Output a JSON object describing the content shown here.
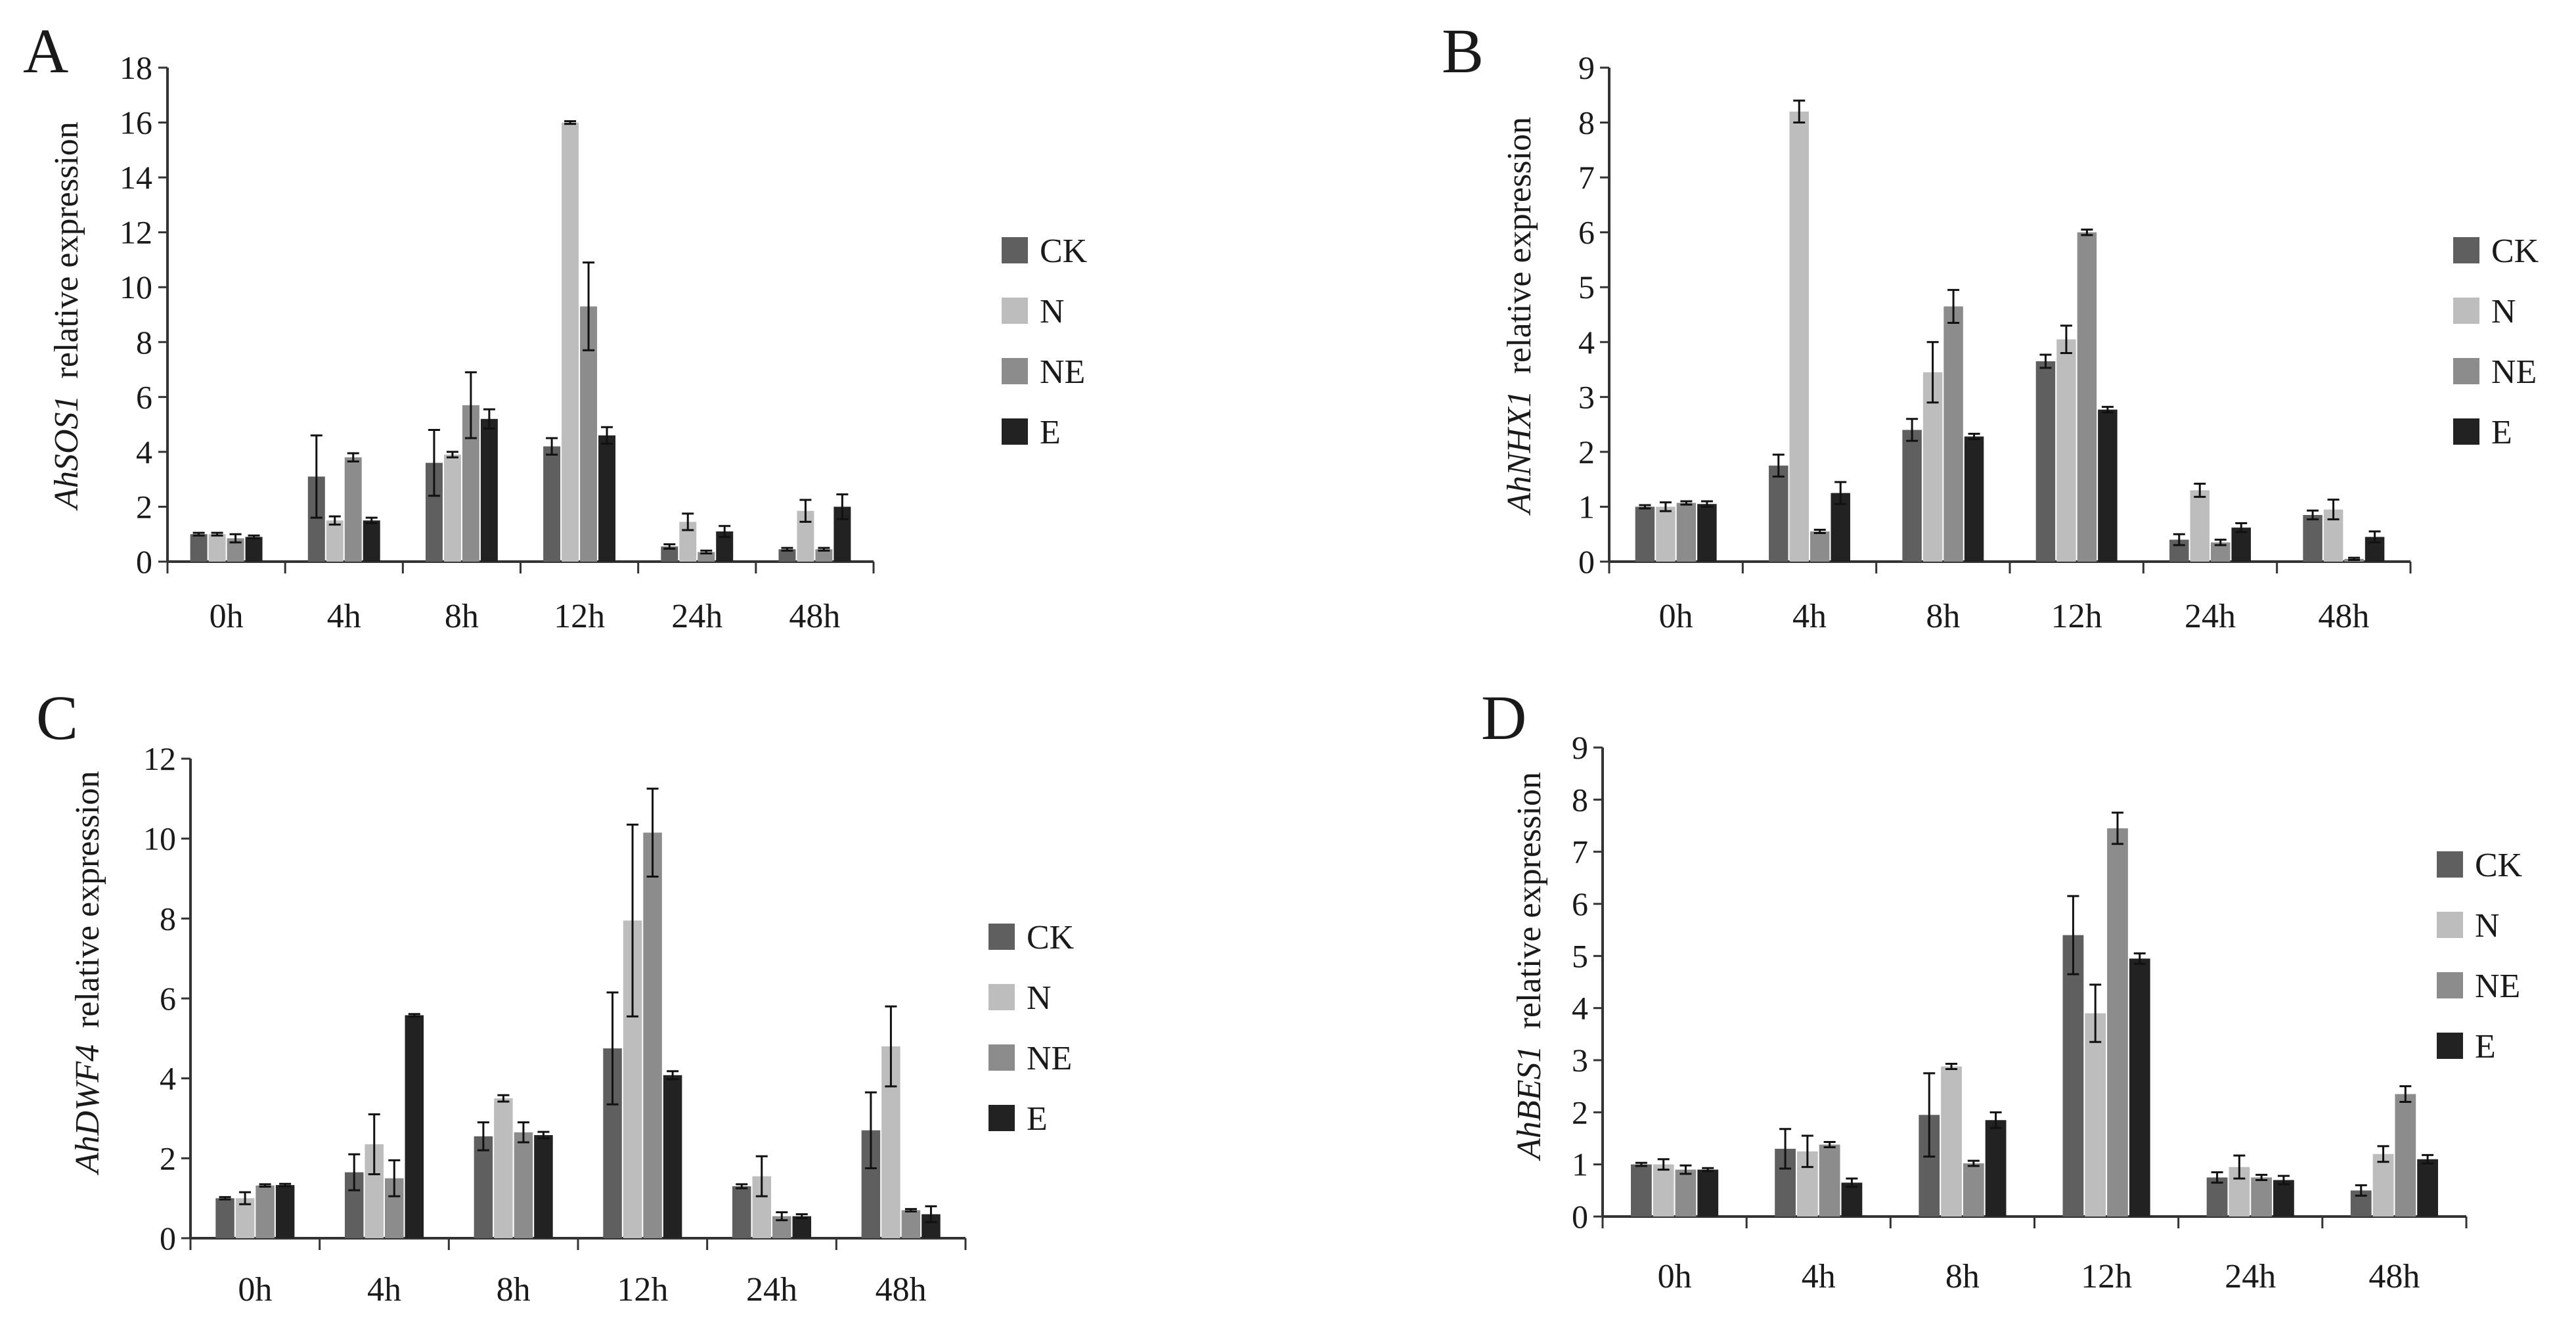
{
  "figure": {
    "legend_labels": [
      "CK",
      "N",
      "NE",
      "E"
    ],
    "colors": {
      "CK": "#5f5f5f",
      "N": "#bdbdbd",
      "NE": "#8c8c8c",
      "E": "#222222",
      "axis": "#333333",
      "text": "#1a1a1a"
    }
  },
  "chart_data": [
    {
      "panel": "A",
      "type": "bar",
      "gene": "AhSOS1",
      "ylabel_suffix": "relative expression",
      "xlabel": "",
      "ylim": [
        0,
        18
      ],
      "ytick_step": 2,
      "categories": [
        "0h",
        "4h",
        "8h",
        "12h",
        "24h",
        "48h"
      ],
      "series": [
        {
          "name": "CK",
          "values": [
            1.0,
            3.1,
            3.6,
            4.2,
            0.55,
            0.45
          ],
          "errors": [
            0.05,
            1.5,
            1.2,
            0.3,
            0.08,
            0.05
          ]
        },
        {
          "name": "N",
          "values": [
            1.0,
            1.5,
            3.9,
            16.0,
            1.45,
            1.85
          ],
          "errors": [
            0.05,
            0.15,
            0.1,
            0.05,
            0.3,
            0.4
          ]
        },
        {
          "name": "NE",
          "values": [
            0.85,
            3.8,
            5.7,
            9.3,
            0.35,
            0.45
          ],
          "errors": [
            0.15,
            0.15,
            1.2,
            1.6,
            0.05,
            0.05
          ]
        },
        {
          "name": "E",
          "values": [
            0.9,
            1.5,
            5.2,
            4.6,
            1.1,
            2.0
          ],
          "errors": [
            0.05,
            0.1,
            0.35,
            0.3,
            0.2,
            0.45
          ]
        }
      ]
    },
    {
      "panel": "B",
      "type": "bar",
      "gene": "AhNHX1",
      "ylabel_suffix": "relative expression",
      "xlabel": "",
      "ylim": [
        0,
        9
      ],
      "ytick_step": 1,
      "categories": [
        "0h",
        "4h",
        "8h",
        "12h",
        "24h",
        "48h"
      ],
      "series": [
        {
          "name": "CK",
          "values": [
            1.0,
            1.75,
            2.4,
            3.65,
            0.4,
            0.85
          ],
          "errors": [
            0.03,
            0.2,
            0.2,
            0.12,
            0.1,
            0.08
          ]
        },
        {
          "name": "N",
          "values": [
            1.0,
            8.2,
            3.45,
            4.05,
            1.3,
            0.95
          ],
          "errors": [
            0.08,
            0.2,
            0.55,
            0.25,
            0.12,
            0.18
          ]
        },
        {
          "name": "NE",
          "values": [
            1.07,
            0.55,
            4.65,
            6.0,
            0.35,
            0.05
          ],
          "errors": [
            0.03,
            0.03,
            0.3,
            0.05,
            0.05,
            0.02
          ]
        },
        {
          "name": "E",
          "values": [
            1.05,
            1.25,
            2.28,
            2.77,
            0.62,
            0.45
          ],
          "errors": [
            0.05,
            0.2,
            0.05,
            0.05,
            0.08,
            0.1
          ]
        }
      ]
    },
    {
      "panel": "C",
      "type": "bar",
      "gene": "AhDWF4",
      "ylabel_suffix": "relative expression",
      "xlabel": "",
      "ylim": [
        0,
        12
      ],
      "ytick_step": 2,
      "categories": [
        "0h",
        "4h",
        "8h",
        "12h",
        "24h",
        "48h"
      ],
      "series": [
        {
          "name": "CK",
          "values": [
            1.0,
            1.65,
            2.55,
            4.75,
            1.3,
            2.7
          ],
          "errors": [
            0.03,
            0.45,
            0.35,
            1.4,
            0.05,
            0.95
          ]
        },
        {
          "name": "N",
          "values": [
            1.0,
            2.35,
            3.5,
            7.95,
            1.55,
            4.8
          ],
          "errors": [
            0.15,
            0.75,
            0.08,
            2.4,
            0.5,
            1.0
          ]
        },
        {
          "name": "NE",
          "values": [
            1.32,
            1.5,
            2.65,
            10.15,
            0.55,
            0.7
          ],
          "errors": [
            0.03,
            0.45,
            0.25,
            1.1,
            0.1,
            0.03
          ]
        },
        {
          "name": "E",
          "values": [
            1.33,
            5.58,
            2.58,
            4.08,
            0.55,
            0.6
          ],
          "errors": [
            0.03,
            0.03,
            0.08,
            0.1,
            0.05,
            0.2
          ]
        }
      ]
    },
    {
      "panel": "D",
      "type": "bar",
      "gene": "AhBES1",
      "ylabel_suffix": "relative expression",
      "xlabel": "",
      "ylim": [
        0,
        9
      ],
      "ytick_step": 1,
      "categories": [
        "0h",
        "4h",
        "8h",
        "12h",
        "24h",
        "48h"
      ],
      "series": [
        {
          "name": "CK",
          "values": [
            1.0,
            1.3,
            1.95,
            5.4,
            0.75,
            0.5
          ],
          "errors": [
            0.03,
            0.38,
            0.8,
            0.75,
            0.1,
            0.1
          ]
        },
        {
          "name": "N",
          "values": [
            1.0,
            1.25,
            2.88,
            3.9,
            0.95,
            1.2
          ],
          "errors": [
            0.1,
            0.3,
            0.05,
            0.55,
            0.22,
            0.15
          ]
        },
        {
          "name": "NE",
          "values": [
            0.9,
            1.38,
            1.02,
            7.45,
            0.75,
            2.35
          ],
          "errors": [
            0.08,
            0.05,
            0.05,
            0.3,
            0.05,
            0.15
          ]
        },
        {
          "name": "E",
          "values": [
            0.9,
            0.65,
            1.85,
            4.95,
            0.7,
            1.1
          ],
          "errors": [
            0.03,
            0.08,
            0.15,
            0.1,
            0.08,
            0.08
          ]
        }
      ]
    }
  ]
}
